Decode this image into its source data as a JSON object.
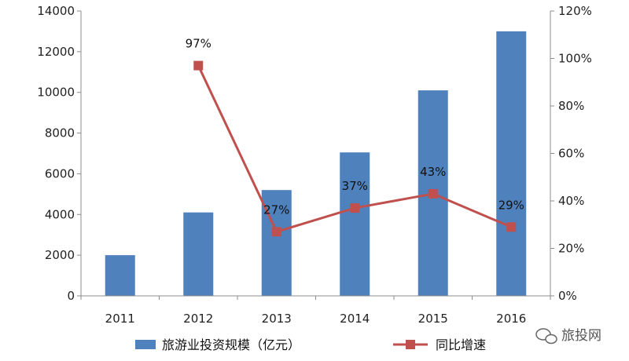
{
  "chart_data": {
    "type": "bar",
    "categories": [
      "2011",
      "2012",
      "2013",
      "2014",
      "2015",
      "2016"
    ],
    "series": [
      {
        "name": "旅游业投资规模（亿元）",
        "type": "bar",
        "axis": "left",
        "values": [
          2000,
          4100,
          5200,
          7050,
          10100,
          13000
        ],
        "color": "#4f81bd"
      },
      {
        "name": "同比增速",
        "type": "line",
        "axis": "right",
        "values": [
          null,
          97,
          27,
          37,
          43,
          29
        ],
        "labels": [
          "",
          "97%",
          "27%",
          "37%",
          "43%",
          "29%"
        ],
        "color": "#c0504d"
      }
    ],
    "y_left": {
      "min": 0,
      "max": 14000,
      "ticks": [
        "0",
        "2000",
        "4000",
        "6000",
        "8000",
        "10000",
        "12000",
        "14000"
      ]
    },
    "y_right": {
      "min": 0,
      "max": 120,
      "ticks": [
        "0%",
        "20%",
        "40%",
        "60%",
        "80%",
        "100%",
        "120%"
      ]
    },
    "grid": false,
    "legend_position": "bottom"
  },
  "watermark": {
    "text": "旅投网",
    "icon": "wechat-icon"
  }
}
